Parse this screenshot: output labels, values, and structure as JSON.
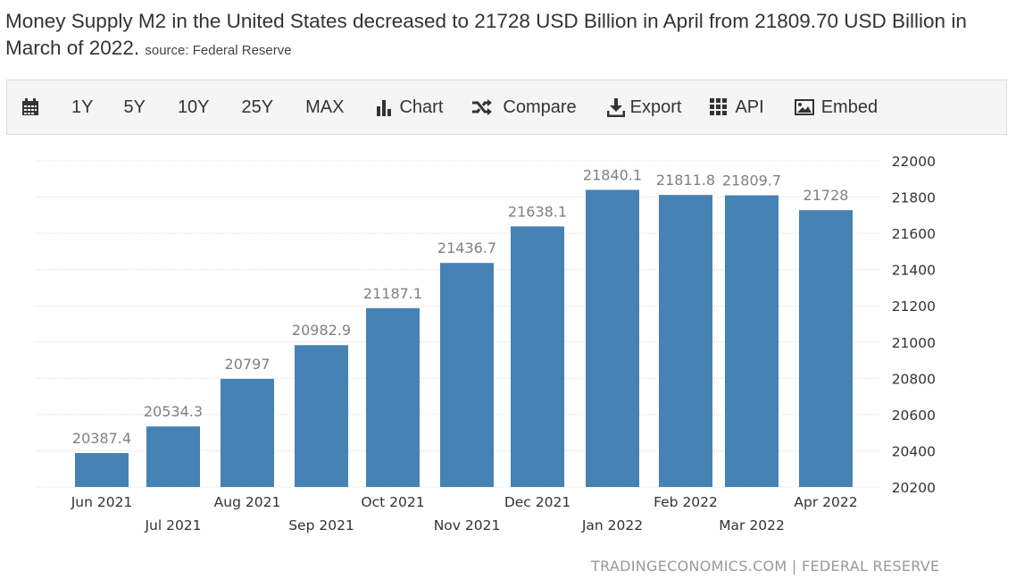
{
  "headline": {
    "text": "Money Supply M2 in the United States decreased to 21728 USD Billion in April from 21809.70 USD Billion in March of 2022.",
    "source": "source: Federal Reserve"
  },
  "toolbar": {
    "calendar_icon": "calendar-icon",
    "ranges": [
      "1Y",
      "5Y",
      "10Y",
      "25Y",
      "MAX"
    ],
    "chart_label": "Chart",
    "compare_label": "Compare",
    "export_label": "Export",
    "api_label": "API",
    "embed_label": "Embed"
  },
  "colors": {
    "bar": "#4682b4",
    "grid": "#e0e0e0",
    "label": "#808080"
  },
  "chart_data": {
    "type": "bar",
    "title": "",
    "xlabel": "",
    "ylabel": "",
    "categories": [
      "Jun 2021",
      "Jul 2021",
      "Aug 2021",
      "Sep 2021",
      "Oct 2021",
      "Nov 2021",
      "Dec 2021",
      "Jan 2022",
      "Feb 2022",
      "Mar 2022",
      "Apr 2022"
    ],
    "values": [
      20387.4,
      20534.3,
      20797,
      20982.9,
      21187.1,
      21436.7,
      21638.1,
      21840.1,
      21811.8,
      21809.7,
      21728
    ],
    "value_labels": [
      "20387.4",
      "20534.3",
      "20797",
      "20982.9",
      "21187.1",
      "21436.7",
      "21638.1",
      "21840.1",
      "21811.8",
      "21809.7",
      "21728"
    ],
    "ylim": [
      20200,
      22000
    ],
    "yticks": [
      20200,
      20400,
      20600,
      20800,
      21000,
      21200,
      21400,
      21600,
      21800,
      22000
    ],
    "grid": true,
    "y_axis_side": "right"
  },
  "footer": {
    "attribution": "TRADINGECONOMICS.COM | FEDERAL RESERVE"
  }
}
